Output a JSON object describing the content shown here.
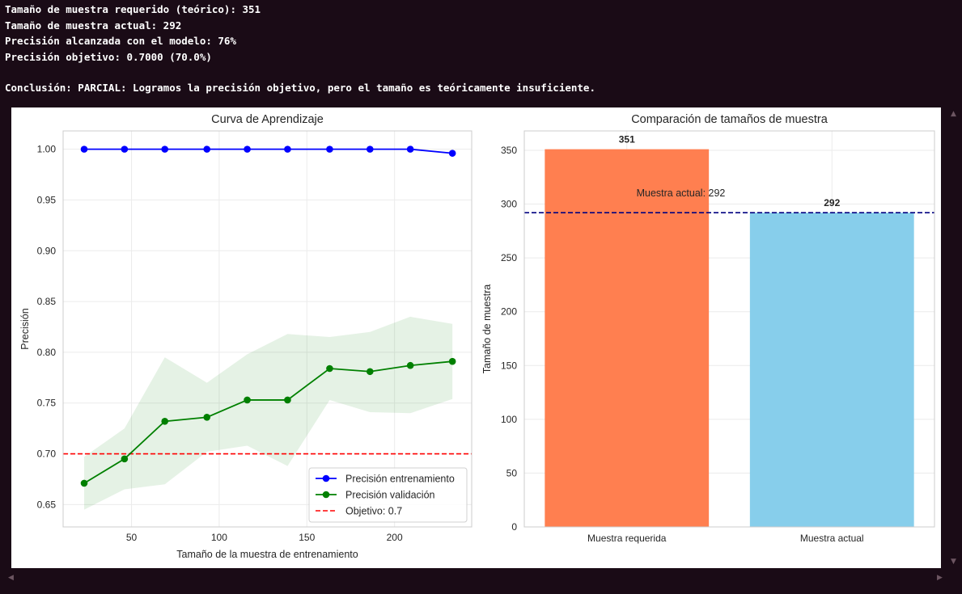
{
  "console": {
    "line1": "Tamaño de muestra requerido (teórico): 351",
    "line2": "Tamaño de muestra actual: 292",
    "line3": "Precisión alcanzada con el modelo: 76%",
    "line4": "Precisión objetivo: 0.7000 (70.0%)",
    "conclusion": "Conclusión: PARCIAL: Logramos la precisión objetivo, pero el tamaño es teóricamente insuficiente."
  },
  "chart_data": [
    {
      "type": "line",
      "title": "Curva de Aprendizaje",
      "xlabel": "Tamaño de la muestra de entrenamiento",
      "ylabel": "Precisión",
      "xlim": [
        11,
        244
      ],
      "ylim": [
        0.628,
        1.018
      ],
      "xticks": [
        "50",
        "100",
        "150",
        "200"
      ],
      "xtick_values": [
        50,
        100,
        150,
        200
      ],
      "yticks": [
        "0.65",
        "0.70",
        "0.75",
        "0.80",
        "0.85",
        "0.90",
        "0.95",
        "1.00"
      ],
      "ytick_values": [
        0.65,
        0.7,
        0.75,
        0.8,
        0.85,
        0.9,
        0.95,
        1.0
      ],
      "grid": true,
      "legend_position": "bottom-right",
      "x": [
        23,
        46,
        69,
        93,
        116,
        139,
        163,
        186,
        209,
        233
      ],
      "series": [
        {
          "name": "Precisión entrenamiento",
          "color": "#0000ff",
          "values": [
            1.0,
            1.0,
            1.0,
            1.0,
            1.0,
            1.0,
            1.0,
            1.0,
            1.0,
            0.996
          ]
        },
        {
          "name": "Precisión validación",
          "color": "#008000",
          "values": [
            0.671,
            0.695,
            0.732,
            0.736,
            0.753,
            0.753,
            0.784,
            0.781,
            0.787,
            0.791
          ],
          "band_upper": [
            0.697,
            0.725,
            0.795,
            0.77,
            0.798,
            0.818,
            0.815,
            0.82,
            0.835,
            0.828
          ],
          "band_lower": [
            0.645,
            0.665,
            0.67,
            0.702,
            0.708,
            0.688,
            0.753,
            0.741,
            0.74,
            0.754
          ],
          "band_color": "#008000"
        }
      ],
      "reference_line": {
        "name": "Objetivo: 0.7",
        "value": 0.7,
        "color": "#ff0000"
      }
    },
    {
      "type": "bar",
      "title": "Comparación de tamaños de muestra",
      "xlabel": "",
      "ylabel": "Tamaño de muestra",
      "ylim": [
        0,
        368
      ],
      "yticks": [
        "0",
        "50",
        "100",
        "150",
        "200",
        "250",
        "300",
        "350"
      ],
      "ytick_values": [
        0,
        50,
        100,
        150,
        200,
        250,
        300,
        350
      ],
      "grid": true,
      "categories": [
        "Muestra requerida",
        "Muestra actual"
      ],
      "values": [
        351,
        292
      ],
      "value_labels": [
        "351",
        "292"
      ],
      "colors": [
        "#ff7f50",
        "#87ceeb"
      ],
      "reference_line": {
        "value": 292,
        "color": "#000080",
        "label": "Muestra actual: 292"
      }
    }
  ]
}
